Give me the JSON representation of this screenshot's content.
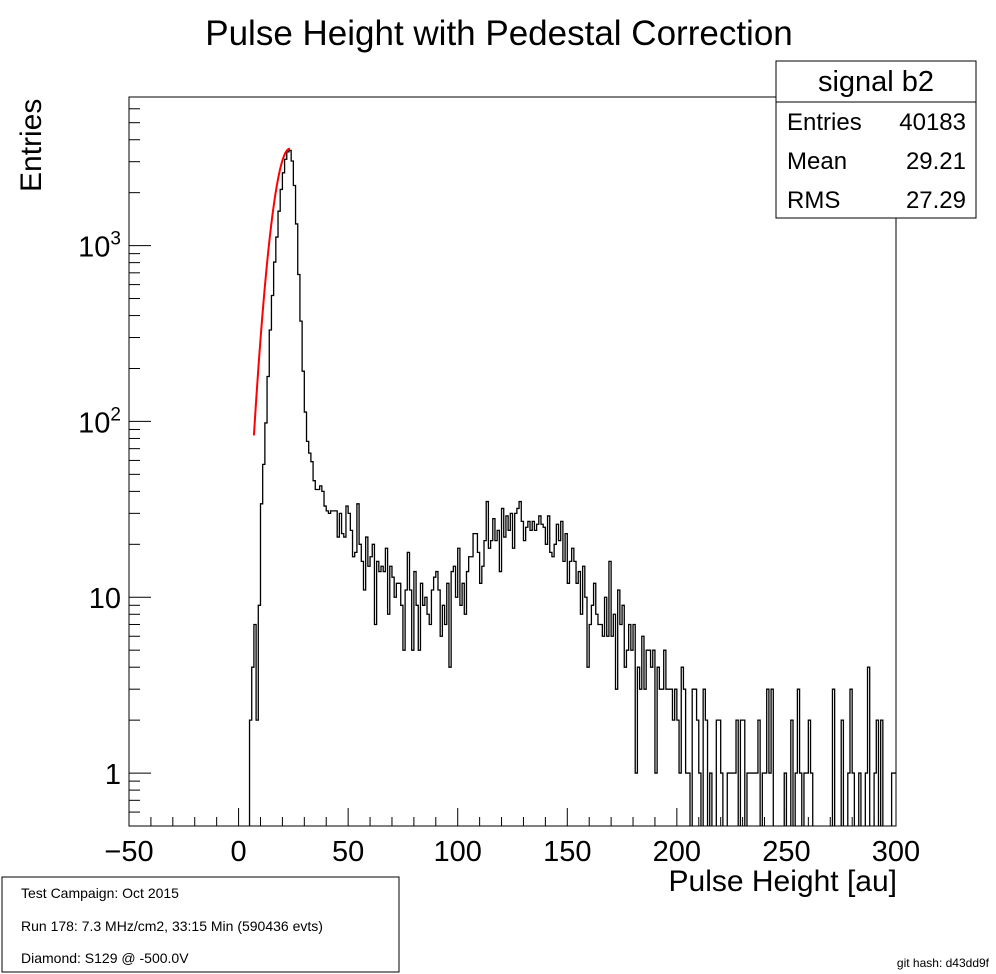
{
  "chart_data": {
    "type": "histogram",
    "title": "Pulse Height with Pedestal Correction",
    "xlabel": "Pulse Height [au]",
    "ylabel": "Entries",
    "xlim": [
      -50,
      300
    ],
    "ylim": [
      0.5,
      7000
    ],
    "yscale": "log",
    "bin_width": 1,
    "x_tick_labels": [
      "−50",
      "0",
      "50",
      "100",
      "150",
      "200",
      "250",
      "300"
    ],
    "x_tick_values": [
      -50,
      0,
      50,
      100,
      150,
      200,
      250,
      300
    ],
    "y_tick_values": [
      1,
      10,
      100,
      1000
    ],
    "y_tick_labels": [
      {
        "base": "1",
        "exp": ""
      },
      {
        "base": "10",
        "exp": ""
      },
      {
        "base": "10",
        "exp": "2"
      },
      {
        "base": "10",
        "exp": "3"
      }
    ],
    "histogram": {
      "name": "signal b2",
      "color": "#000000",
      "profile": [
        [
          3,
          0
        ],
        [
          4,
          1
        ],
        [
          5,
          0.8
        ],
        [
          6,
          1.5
        ],
        [
          7,
          5
        ],
        [
          8,
          4.5
        ],
        [
          9,
          8
        ],
        [
          10,
          25
        ],
        [
          11,
          40
        ],
        [
          12,
          70
        ],
        [
          13,
          140
        ],
        [
          14,
          250
        ],
        [
          15,
          420
        ],
        [
          16,
          650
        ],
        [
          17,
          950
        ],
        [
          18,
          1350
        ],
        [
          19,
          1850
        ],
        [
          20,
          2350
        ],
        [
          21,
          2900
        ],
        [
          22,
          3300
        ],
        [
          23,
          3550
        ],
        [
          24,
          3450
        ],
        [
          25,
          2700
        ],
        [
          26,
          1800
        ],
        [
          27,
          1000
        ],
        [
          28,
          500
        ],
        [
          29,
          270
        ],
        [
          30,
          150
        ],
        [
          31,
          95
        ],
        [
          32,
          70
        ],
        [
          33,
          60
        ],
        [
          34,
          55
        ],
        [
          35,
          45
        ],
        [
          36,
          38
        ],
        [
          38,
          33
        ],
        [
          40,
          30
        ],
        [
          45,
          28
        ],
        [
          50,
          25
        ],
        [
          55,
          21
        ],
        [
          60,
          18
        ],
        [
          65,
          15
        ],
        [
          70,
          12
        ],
        [
          75,
          10
        ],
        [
          80,
          9
        ],
        [
          85,
          8.5
        ],
        [
          90,
          9
        ],
        [
          95,
          10
        ],
        [
          100,
          12
        ],
        [
          105,
          15
        ],
        [
          110,
          18
        ],
        [
          115,
          22
        ],
        [
          120,
          25
        ],
        [
          125,
          27
        ],
        [
          130,
          26
        ],
        [
          135,
          26
        ],
        [
          140,
          25
        ],
        [
          145,
          21
        ],
        [
          150,
          17
        ],
        [
          155,
          14
        ],
        [
          160,
          10
        ],
        [
          165,
          9
        ],
        [
          170,
          7
        ],
        [
          175,
          6
        ],
        [
          180,
          4.5
        ],
        [
          185,
          4
        ],
        [
          190,
          3.5
        ],
        [
          195,
          3
        ],
        [
          200,
          2.5
        ],
        [
          205,
          2.1
        ],
        [
          210,
          1.7
        ],
        [
          215,
          1.5
        ],
        [
          220,
          1.3
        ],
        [
          225,
          1.2
        ],
        [
          230,
          1.05
        ],
        [
          240,
          0.95
        ],
        [
          250,
          0.85
        ],
        [
          260,
          0.8
        ],
        [
          270,
          0.75
        ],
        [
          280,
          0.7
        ],
        [
          290,
          0.65
        ],
        [
          300,
          0.6
        ]
      ]
    },
    "fit": {
      "color": "#ff0000",
      "type": "gaussian",
      "amplitude": 3550,
      "mean": 23.3,
      "sigma": 5.95,
      "range": [
        7,
        23.5
      ]
    }
  },
  "stats_box": {
    "title": "signal b2",
    "rows": [
      {
        "label": "Entries",
        "value": "40183"
      },
      {
        "label": "Mean",
        "value": "29.21"
      },
      {
        "label": "RMS",
        "value": "27.29"
      }
    ]
  },
  "info_box": {
    "lines": [
      "Test Campaign: Oct 2015",
      "Run 178: 7.3 MHz/cm2, 33:15 Min (590436 evts)",
      "Diamond: S129 @ -500.0V"
    ]
  },
  "git_hash": "git hash: d43dd9f"
}
